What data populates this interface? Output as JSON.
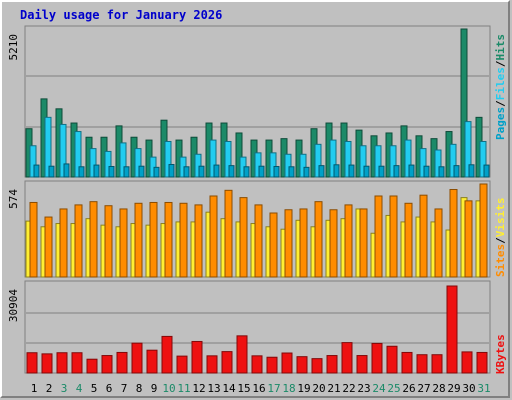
{
  "title": "Daily usage for January 2026",
  "colors": {
    "title": "#0000cc",
    "hits": "#1b8a68",
    "files": "#22ccf0",
    "pages": "#00a0c8",
    "visits": "#ff8c00",
    "sites": "#ffee33",
    "kbytes": "#ee1111",
    "weekday_label": "#000000",
    "weekend_label": "#1b8a68"
  },
  "chart_data": [
    {
      "type": "bar",
      "name": "hits-files-pages",
      "axis_max_label": "5210",
      "ylim": [
        0,
        5210
      ],
      "series_labels": [
        "Pages",
        "Files",
        "Hits"
      ],
      "separators": [
        "/",
        "/"
      ],
      "categories": [
        "1",
        "2",
        "3",
        "4",
        "5",
        "6",
        "7",
        "8",
        "9",
        "10",
        "11",
        "12",
        "13",
        "14",
        "15",
        "16",
        "17",
        "18",
        "19",
        "20",
        "21",
        "22",
        "23",
        "24",
        "25",
        "26",
        "27",
        "28",
        "29",
        "30",
        "31"
      ],
      "series": [
        {
          "name": "Hits",
          "values": [
            1700,
            2750,
            2400,
            1900,
            1400,
            1400,
            1800,
            1400,
            1300,
            2000,
            1300,
            1400,
            1900,
            1900,
            1550,
            1300,
            1300,
            1350,
            1300,
            1700,
            1900,
            1900,
            1650,
            1450,
            1550,
            1800,
            1450,
            1350,
            1600,
            5210,
            2100
          ]
        },
        {
          "name": "Files",
          "values": [
            1100,
            2100,
            1850,
            1600,
            1000,
            900,
            1200,
            1000,
            700,
            1250,
            700,
            800,
            1300,
            1250,
            700,
            850,
            850,
            800,
            800,
            1150,
            1300,
            1250,
            1100,
            1100,
            1100,
            1300,
            1000,
            950,
            1150,
            1950,
            1250
          ]
        },
        {
          "name": "Pages",
          "values": [
            420,
            380,
            460,
            360,
            420,
            370,
            360,
            380,
            340,
            440,
            360,
            380,
            420,
            400,
            360,
            380,
            370,
            360,
            340,
            400,
            430,
            420,
            380,
            380,
            400,
            420,
            380,
            360,
            400,
            430,
            420
          ]
        }
      ]
    },
    {
      "type": "bar",
      "name": "visits-sites",
      "axis_max_label": "574",
      "ylim": [
        0,
        574
      ],
      "series_labels": [
        "Sites",
        "Visits"
      ],
      "separators": [
        "/"
      ],
      "categories": [
        "1",
        "2",
        "3",
        "4",
        "5",
        "6",
        "7",
        "8",
        "9",
        "10",
        "11",
        "12",
        "13",
        "14",
        "15",
        "16",
        "17",
        "18",
        "19",
        "20",
        "21",
        "22",
        "23",
        "24",
        "25",
        "26",
        "27",
        "28",
        "29",
        "30",
        "31"
      ],
      "series": [
        {
          "name": "Visits",
          "values": [
            460,
            370,
            420,
            445,
            465,
            440,
            420,
            455,
            460,
            460,
            455,
            445,
            500,
            535,
            490,
            445,
            395,
            415,
            420,
            465,
            415,
            445,
            420,
            500,
            500,
            455,
            505,
            420,
            540,
            470,
            574
          ]
        },
        {
          "name": "Sites",
          "values": [
            345,
            310,
            330,
            330,
            360,
            320,
            310,
            330,
            320,
            330,
            340,
            340,
            400,
            360,
            340,
            330,
            310,
            295,
            350,
            310,
            350,
            360,
            420,
            270,
            380,
            340,
            370,
            340,
            290,
            490,
            470
          ]
        }
      ]
    },
    {
      "type": "bar",
      "name": "kbytes",
      "axis_max_label": "30904",
      "ylim": [
        0,
        30904
      ],
      "series_labels": [
        "KBytes"
      ],
      "categories": [
        "1",
        "2",
        "3",
        "4",
        "5",
        "6",
        "7",
        "8",
        "9",
        "10",
        "11",
        "12",
        "13",
        "14",
        "15",
        "16",
        "17",
        "18",
        "19",
        "20",
        "21",
        "22",
        "23",
        "24",
        "25",
        "26",
        "27",
        "28",
        "29",
        "30",
        "31"
      ],
      "series": [
        {
          "name": "KBytes",
          "values": [
            7200,
            6800,
            7200,
            7200,
            4900,
            6200,
            7300,
            10600,
            8100,
            13000,
            6000,
            11200,
            6100,
            7600,
            13200,
            6100,
            5600,
            7100,
            5800,
            5100,
            6200,
            10800,
            6200,
            10500,
            9500,
            7300,
            6500,
            6500,
            30904,
            7500,
            7300
          ]
        }
      ]
    }
  ],
  "x_labels": [
    "1",
    "2",
    "3",
    "4",
    "5",
    "6",
    "7",
    "8",
    "9",
    "10",
    "11",
    "12",
    "13",
    "14",
    "15",
    "16",
    "17",
    "18",
    "19",
    "20",
    "21",
    "22",
    "23",
    "24",
    "25",
    "26",
    "27",
    "28",
    "29",
    "30",
    "31"
  ],
  "weekend_days": [
    3,
    4,
    10,
    11,
    17,
    18,
    24,
    25,
    31
  ]
}
